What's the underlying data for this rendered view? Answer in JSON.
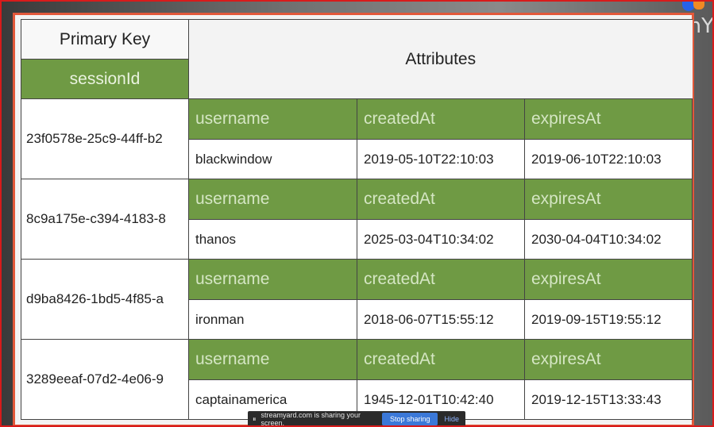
{
  "watermark": "StreamY",
  "table": {
    "primary_key_header": "Primary Key",
    "primary_key_name": "sessionId",
    "attributes_header": "Attributes",
    "attribute_names": [
      "username",
      "createdAt",
      "expiresAt"
    ],
    "rows": [
      {
        "session_id": "23f0578e-25c9-44ff-b2",
        "username": "blackwindow",
        "createdAt": "2019-05-10T22:10:03",
        "expiresAt": "2019-06-10T22:10:03"
      },
      {
        "session_id": "8c9a175e-c394-4183-8",
        "username": "thanos",
        "createdAt": "2025-03-04T10:34:02",
        "expiresAt": "2030-04-04T10:34:02"
      },
      {
        "session_id": "d9ba8426-1bd5-4f85-a",
        "username": "ironman",
        "createdAt": "2018-06-07T15:55:12",
        "expiresAt": "2019-09-15T19:55:12"
      },
      {
        "session_id": "3289eeaf-07d2-4e06-9",
        "username": "captainamerica",
        "createdAt": "1945-12-01T10:42:40",
        "expiresAt": "2019-12-15T13:33:43"
      }
    ]
  },
  "share_bar": {
    "message": "streamyard.com is sharing your screen.",
    "stop_label": "Stop sharing",
    "hide_label": "Hide"
  },
  "colors": {
    "header_green": "#6f9a44",
    "frame_red": "#d81b1b",
    "slide_border": "#e2583a",
    "stop_button_blue": "#3b78d8"
  }
}
